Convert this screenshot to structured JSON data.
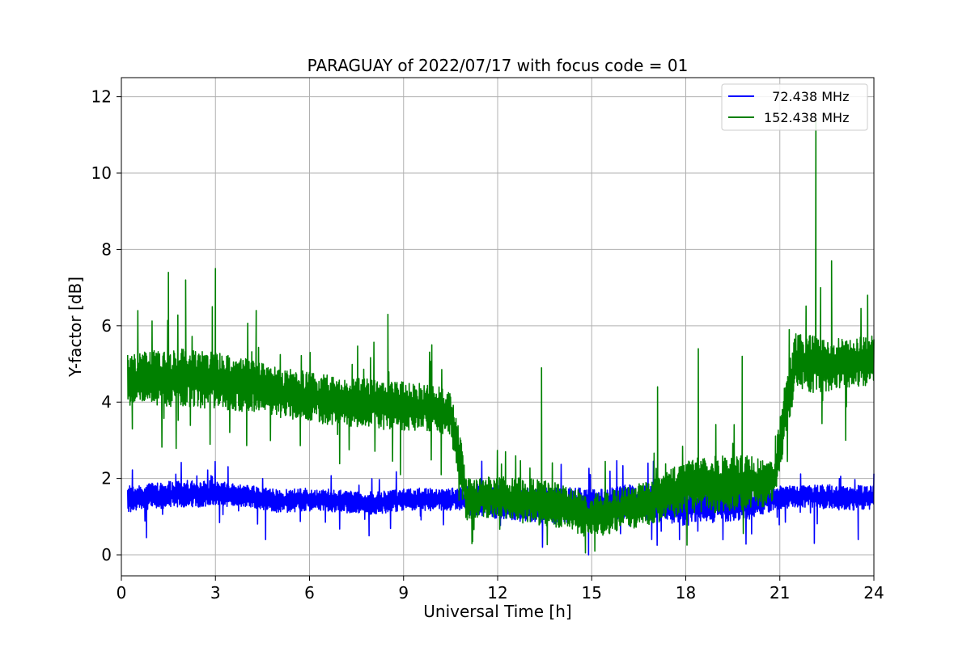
{
  "chart_data": {
    "type": "line",
    "title": "PARAGUAY of 2022/07/17 with focus code = 01",
    "xlabel": "Universal Time [h]",
    "ylabel": "Y-factor [dB]",
    "xlim": [
      0,
      24
    ],
    "ylim": [
      -0.55,
      12.5
    ],
    "xticks": [
      0,
      3,
      6,
      9,
      12,
      15,
      18,
      21,
      24
    ],
    "xtick_labels": [
      "0",
      "3",
      "6",
      "9",
      "12",
      "15",
      "18",
      "21",
      "24"
    ],
    "yticks": [
      0,
      2,
      4,
      6,
      8,
      10,
      12
    ],
    "ytick_labels": [
      "0",
      "2",
      "4",
      "6",
      "8",
      "10",
      "12"
    ],
    "grid": true,
    "legend_position": "top-right",
    "series": [
      {
        "name": "72.438 MHz",
        "legend_label": "  72.438 MHz",
        "color": "#0000ff",
        "x": [
          0.2,
          1.0,
          2.0,
          3.0,
          4.0,
          5.0,
          6.0,
          7.0,
          8.0,
          9.0,
          10.0,
          10.8,
          11.0,
          12.0,
          13.0,
          14.0,
          15.0,
          16.0,
          17.0,
          18.0,
          19.0,
          20.0,
          21.0,
          22.0,
          23.0,
          24.0
        ],
        "y": [
          1.45,
          1.55,
          1.6,
          1.6,
          1.55,
          1.4,
          1.45,
          1.4,
          1.35,
          1.45,
          1.45,
          1.45,
          1.45,
          1.4,
          1.3,
          1.3,
          1.3,
          1.4,
          1.35,
          1.25,
          1.35,
          1.35,
          1.5,
          1.55,
          1.5,
          1.5
        ],
        "band": [
          0.35,
          0.35,
          0.35,
          0.35,
          0.3,
          0.3,
          0.3,
          0.3,
          0.3,
          0.3,
          0.3,
          0.3,
          0.4,
          0.45,
          0.45,
          0.5,
          0.45,
          0.45,
          0.45,
          0.5,
          0.5,
          0.45,
          0.3,
          0.3,
          0.35,
          0.3
        ],
        "spikes": [
          [
            0.8,
            0.45
          ],
          [
            4.6,
            0.4
          ],
          [
            7.9,
            0.5
          ],
          [
            14.9,
            0.0
          ],
          [
            17.8,
            0.4
          ],
          [
            20.1,
            0.55
          ],
          [
            22.1,
            0.3
          ],
          [
            23.5,
            0.4
          ],
          [
            2.9,
            2.05
          ],
          [
            22.9,
            2.0
          ],
          [
            12.0,
            1.95
          ]
        ]
      },
      {
        "name": "152.438 MHz",
        "legend_label": "152.438 MHz",
        "color": "#008000",
        "x": [
          0.2,
          1.0,
          2.0,
          3.0,
          4.0,
          5.0,
          6.0,
          7.0,
          8.0,
          9.0,
          10.0,
          10.5,
          10.8,
          11.0,
          12.0,
          13.0,
          14.0,
          15.0,
          16.0,
          17.0,
          18.0,
          19.0,
          20.0,
          20.8,
          21.2,
          21.5,
          22.0,
          23.0,
          24.0
        ],
        "y": [
          4.6,
          4.6,
          4.65,
          4.55,
          4.45,
          4.25,
          4.15,
          4.0,
          3.95,
          3.9,
          3.85,
          3.7,
          2.5,
          1.45,
          1.5,
          1.4,
          1.3,
          1.0,
          1.2,
          1.4,
          1.8,
          1.85,
          1.9,
          1.9,
          3.8,
          5.1,
          5.0,
          5.0,
          5.1
        ],
        "band": [
          0.7,
          0.75,
          0.75,
          0.75,
          0.7,
          0.65,
          0.65,
          0.65,
          0.65,
          0.65,
          0.6,
          0.6,
          0.7,
          0.55,
          0.55,
          0.6,
          0.6,
          0.6,
          0.55,
          0.6,
          0.7,
          0.75,
          0.7,
          0.6,
          0.9,
          0.7,
          0.75,
          0.7,
          0.65
        ],
        "spikes": [
          [
            1.5,
            7.4
          ],
          [
            2.05,
            7.2
          ],
          [
            3.0,
            7.5
          ],
          [
            2.9,
            6.5
          ],
          [
            4.3,
            6.4
          ],
          [
            8.5,
            6.3
          ],
          [
            9.9,
            5.5
          ],
          [
            13.4,
            4.9
          ],
          [
            22.15,
            11.5
          ],
          [
            22.65,
            7.7
          ],
          [
            22.3,
            7.0
          ],
          [
            23.8,
            6.8
          ],
          [
            18.4,
            5.4
          ],
          [
            19.8,
            5.2
          ],
          [
            17.1,
            4.4
          ],
          [
            8.9,
            2.1
          ],
          [
            10.2,
            2.1
          ],
          [
            14.8,
            0.05
          ],
          [
            15.1,
            0.1
          ],
          [
            0.35,
            3.3
          ],
          [
            21.3,
            5.9
          ],
          [
            23.1,
            3.0
          ]
        ]
      }
    ]
  }
}
